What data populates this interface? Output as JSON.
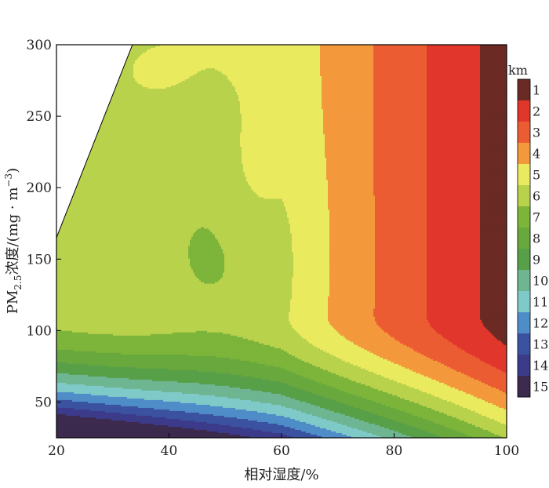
{
  "chart_data": {
    "type": "heatmap",
    "subtype": "filled-contour",
    "xlabel": "相对湿度/%",
    "ylabel": "PM2.5浓度/(mg·m⁻³)",
    "ylabel_parts": {
      "prefix": "PM",
      "subscript": "2.5",
      "middle": "浓度/(mg · m",
      "superscript": "−3",
      "suffix": ")"
    },
    "xlim": [
      20,
      100
    ],
    "ylim": [
      25,
      300
    ],
    "x_ticks": [
      20,
      40,
      60,
      80,
      100
    ],
    "y_ticks": [
      50,
      100,
      150,
      200,
      250,
      300
    ],
    "colorbar": {
      "unit": "km",
      "levels": [
        1,
        2,
        3,
        4,
        5,
        6,
        7,
        8,
        9,
        10,
        11,
        12,
        13,
        14,
        15
      ],
      "colors": [
        "#6b2a24",
        "#e0362c",
        "#ec5c32",
        "#f3993c",
        "#eaea5e",
        "#b9d24c",
        "#7db43a",
        "#69a83c",
        "#58a048",
        "#6eb592",
        "#7fcac8",
        "#4f8dc8",
        "#3a52a0",
        "#3c3b8a",
        "#3d2a4f"
      ]
    },
    "grid": false,
    "band_notes": "Visibility (km) as a function of relative humidity and PM2.5 concentration; high humidity + high PM2.5 gives lowest visibility (1 km), low PM2.5 gives highest (15 km). Top-left corner outside data domain is blank."
  }
}
